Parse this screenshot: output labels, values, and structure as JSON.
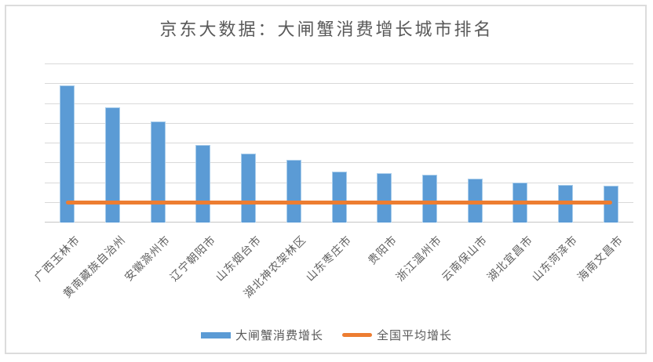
{
  "colors": {
    "bar_fill": "#5B9BD5",
    "bar_edge": "#A9CDEB",
    "avg_line": "#ED7D31",
    "gridline": "#D9D9D9",
    "text": "#595959",
    "frame_border": "#DCDCDC",
    "background": "#FFFFFF"
  },
  "chart_data": {
    "type": "bar",
    "title": "京东大数据：大闸蟹消费增长城市排名",
    "categories": [
      "广西玉林市",
      "黄南藏族自治州",
      "安徽滁州市",
      "辽宁朝阳市",
      "山东烟台市",
      "湖北神农架林区",
      "山东枣庄市",
      "贵阳市",
      "浙江温州市",
      "云南保山市",
      "湖北宜昌市",
      "山东菏泽市",
      "海南文昌市"
    ],
    "series": [
      {
        "name": "大闸蟹消费增长",
        "type": "bar",
        "color": "#5B9BD5",
        "values": [
          6.9,
          5.8,
          5.1,
          3.9,
          3.45,
          3.15,
          2.55,
          2.5,
          2.4,
          2.2,
          2.0,
          1.9,
          1.85
        ]
      },
      {
        "name": "全国平均增长",
        "type": "line",
        "color": "#ED7D31",
        "values": [
          1,
          1,
          1,
          1,
          1,
          1,
          1,
          1,
          1,
          1,
          1,
          1,
          1
        ]
      }
    ],
    "xlabel": "",
    "ylabel": "",
    "ylim": [
      0,
      8
    ],
    "y_tick_labels_visible": false,
    "unit": "relative units estimated from gridlines (national average line = 1)",
    "grid": "horizontal gridlines, 8 intervals",
    "x_label_rotation_deg": 45,
    "legend_position": "bottom"
  }
}
